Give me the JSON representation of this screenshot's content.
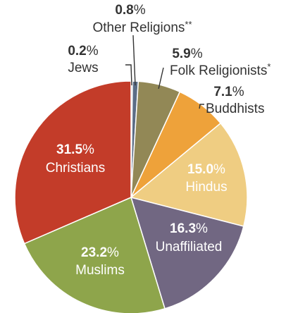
{
  "chart_data": {
    "type": "pie",
    "title": "",
    "slices": [
      {
        "name": "Jews",
        "value": 0.2,
        "pct": "0.2",
        "name_suffix": "",
        "color": "#8a8c91"
      },
      {
        "name": "Other Religions",
        "value": 0.8,
        "pct": "0.8",
        "name_suffix": "**",
        "color": "#5b6d86"
      },
      {
        "name": "Folk Religionists",
        "value": 5.9,
        "pct": "5.9",
        "name_suffix": "*",
        "color": "#928856"
      },
      {
        "name": "Buddhists",
        "value": 7.1,
        "pct": "7.1",
        "name_suffix": "",
        "color": "#eea23a"
      },
      {
        "name": "Hindus",
        "value": 15.0,
        "pct": "15.0",
        "name_suffix": "",
        "color": "#efcd82"
      },
      {
        "name": "Unaffiliated",
        "value": 16.3,
        "pct": "16.3",
        "name_suffix": "",
        "color": "#716782"
      },
      {
        "name": "Muslims",
        "value": 23.2,
        "pct": "23.2",
        "name_suffix": "",
        "color": "#8ea54b"
      },
      {
        "name": "Christians",
        "value": 31.5,
        "pct": "31.5",
        "name_suffix": "",
        "color": "#c33c29"
      }
    ],
    "percent_sign": "%",
    "legend": "none"
  }
}
